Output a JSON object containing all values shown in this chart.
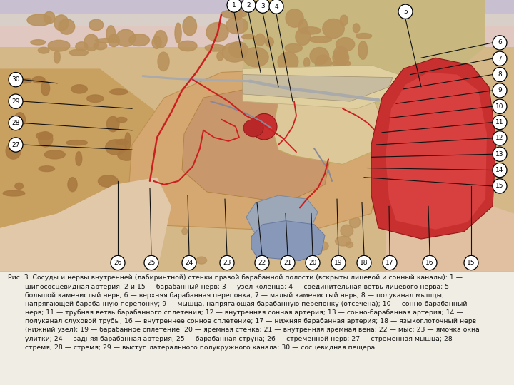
{
  "fig_width": 7.2,
  "fig_height": 5.4,
  "dpi": 100,
  "background_color": "#f0ede5",
  "caption_color": "#111111",
  "caption_text": "Рис. 3. Сосуды и нервы внутренней (лабиринтной) стенки правой барабанной полости (вскрыты лицевой и сонный каналы): 1 —\n        шипососцевидная артерия; 2 и 15 — барабанный нерв; 3 — узел коленца; 4 — соединительная ветвь лицевого нерва; 5 —\n        большой каменистый нерв; 6 — верхняя барабанная перепонка; 7 — малый каменистый нерв; 8 — полуканал мышцы,\n        напрягающей барабанную перепонку; 9 — мышца, напрягающая барабанную перепонку (отсечена); 10 — сонно-барабанный\n        нерв; 11 — трубная ветвь барабанного сплетения; 12 — внутренняя сонная артерия; 13 — сонно-барабанная артерия; 14 —\n        полуканал слуховой трубы; 16 — внутреннее сонное сплетение; 17 — нижняя барабанная артерия; 18 — языкоглоточный нерв\n        (нижний узел); 19 — барабанное сплетение; 20 — яремная стенка; 21 — внутренняя яремная вена; 22 — мыс; 23 — ямочка окна\n        улитки; 24 — задняя барабанная артерия; 25 — барабанная струна; 26 — стременной нерв; 27 — стременная мышца; 28 —\n        стремя; 28 — стремя; 29 — выступ латерального полукружного канала; 30 — сосцевидная пещера."
}
